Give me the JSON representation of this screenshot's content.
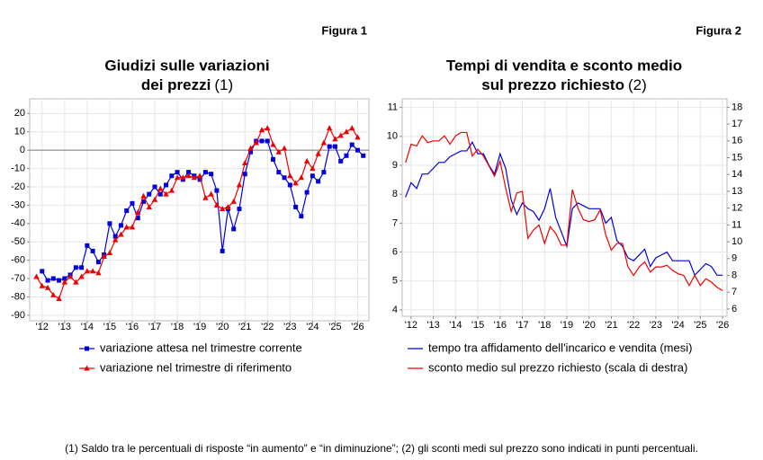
{
  "chart_data": [
    {
      "type": "line",
      "figure_label": "Figura 1",
      "title": [
        "Giudizi sulle variazioni",
        "dei prezzi"
      ],
      "title_note": "(1)",
      "x": [
        2011.75,
        2012,
        2012.25,
        2012.5,
        2012.75,
        2013,
        2013.25,
        2013.5,
        2013.75,
        2014,
        2014.25,
        2014.5,
        2014.75,
        2015,
        2015.25,
        2015.5,
        2015.75,
        2016,
        2016.25,
        2016.5,
        2016.75,
        2017,
        2017.25,
        2017.5,
        2017.75,
        2018,
        2018.25,
        2018.5,
        2018.75,
        2019,
        2019.25,
        2019.5,
        2019.75,
        2020,
        2020.25,
        2020.5,
        2020.75,
        2021,
        2021.25,
        2021.5,
        2021.75,
        2022,
        2022.25,
        2022.5,
        2022.75,
        2023,
        2023.25,
        2023.5,
        2023.75,
        2024,
        2024.25,
        2024.5,
        2024.75,
        2025,
        2025.25,
        2025.5,
        2025.75,
        2026,
        2026.25
      ],
      "series": [
        {
          "name": "variazione attesa nel trimestre corrente",
          "color": "#0000dd",
          "marker": "square",
          "values": [
            null,
            -66,
            -71,
            -70,
            -71,
            -70,
            -68,
            -64,
            -64,
            -52,
            -55,
            -61,
            -57,
            -40,
            -47,
            -41,
            -33,
            -29,
            -37,
            -28,
            -24,
            -20,
            -24,
            -19,
            -14,
            -12,
            -16,
            -12,
            -14,
            -16,
            -12,
            -13,
            -22,
            -55,
            -32,
            -43,
            -32,
            -13,
            -1,
            5,
            5,
            5,
            -5,
            -12,
            -15,
            -19,
            -31,
            -36,
            -23,
            -14,
            -17,
            -12,
            2,
            2,
            -6,
            -3,
            3,
            0,
            -3
          ]
        },
        {
          "name": "variazione nel trimestre di riferimento",
          "color": "#ee0000",
          "marker": "triangle",
          "values": [
            -69,
            -74,
            -75,
            -79,
            -81,
            -72,
            -69,
            -72,
            -69,
            -66,
            -66,
            -67,
            -58,
            -56,
            -49,
            -46,
            -42,
            -42,
            -34,
            -25,
            -31,
            -27,
            -21,
            -24,
            -22,
            -15,
            -15,
            -14,
            -15,
            -14,
            -26,
            -24,
            -30,
            -32,
            -31,
            -28,
            -19,
            -7,
            1,
            4,
            11,
            12,
            3,
            -1,
            1,
            -14,
            -18,
            -15,
            -6,
            -10,
            -2,
            4,
            12,
            6,
            8,
            10,
            12,
            7,
            null
          ]
        }
      ],
      "xlim": [
        2011.45,
        2026.5
      ],
      "xticks": [
        {
          "value": 2012,
          "label": "'12"
        },
        {
          "value": 2013,
          "label": "'13"
        },
        {
          "value": 2014,
          "label": "'14"
        },
        {
          "value": 2015,
          "label": "'15"
        },
        {
          "value": 2016,
          "label": "'16"
        },
        {
          "value": 2017,
          "label": "'17"
        },
        {
          "value": 2018,
          "label": "'18"
        },
        {
          "value": 2019,
          "label": "'19"
        },
        {
          "value": 2020,
          "label": "'20"
        },
        {
          "value": 2021,
          "label": "'21"
        },
        {
          "value": 2022,
          "label": "'22"
        },
        {
          "value": 2023,
          "label": "'23"
        },
        {
          "value": 2024,
          "label": "'24"
        },
        {
          "value": 2025,
          "label": "'25"
        },
        {
          "value": 2026,
          "label": "'26"
        }
      ],
      "ylim": [
        -93,
        28
      ],
      "yticks": [
        -90,
        -80,
        -70,
        -60,
        -50,
        -40,
        -30,
        -20,
        -10,
        0,
        10,
        20
      ],
      "grid": true,
      "zero_line": true
    },
    {
      "type": "line",
      "figure_label": "Figura 2",
      "title": [
        "Tempi di vendita e sconto medio",
        "sul prezzo richiesto"
      ],
      "title_note": "(2)",
      "x": [
        2011.75,
        2012,
        2012.25,
        2012.5,
        2012.75,
        2013,
        2013.25,
        2013.5,
        2013.75,
        2014,
        2014.25,
        2014.5,
        2014.75,
        2015,
        2015.25,
        2015.5,
        2015.75,
        2016,
        2016.25,
        2016.5,
        2016.75,
        2017,
        2017.25,
        2017.5,
        2017.75,
        2018,
        2018.25,
        2018.5,
        2018.75,
        2019,
        2019.25,
        2019.5,
        2019.75,
        2020,
        2020.25,
        2020.5,
        2020.75,
        2021,
        2021.25,
        2021.5,
        2021.75,
        2022,
        2022.25,
        2022.5,
        2022.75,
        2023,
        2023.25,
        2023.5,
        2023.75,
        2024,
        2024.25,
        2024.5,
        2024.75,
        2025,
        2025.25,
        2025.5,
        2025.75,
        2026
      ],
      "series": [
        {
          "name": "tempo tra affidamento dell'incarico e vendita (mesi)",
          "color": "#0000dd",
          "values": [
            7.9,
            8.4,
            8.2,
            8.7,
            8.7,
            8.9,
            9.1,
            9.1,
            9.3,
            9.4,
            9.5,
            9.5,
            9.8,
            9.4,
            9.4,
            9.0,
            8.7,
            9.4,
            8.9,
            7.8,
            7.3,
            7.7,
            7.5,
            7.4,
            7.1,
            7.5,
            8.2,
            7.2,
            6.7,
            6.2,
            7.5,
            7.7,
            7.6,
            7.5,
            7.5,
            7.5,
            7.0,
            7.2,
            6.4,
            6.2,
            5.8,
            5.7,
            5.9,
            6.1,
            5.5,
            5.8,
            5.9,
            6.0,
            5.7,
            5.7,
            5.7,
            5.7,
            5.2,
            5.4,
            5.6,
            5.5,
            5.2,
            5.2
          ]
        },
        {
          "name": "sconto medio sul prezzo richiesto (scala di destra)",
          "color": "#ee0000",
          "axis": "y2",
          "values": [
            14.7,
            15.8,
            15.7,
            16.3,
            15.9,
            16.0,
            16.0,
            16.3,
            15.8,
            16.3,
            16.5,
            16.5,
            15.1,
            15.5,
            15.1,
            14.5,
            13.9,
            14.8,
            13.2,
            11.8,
            12.9,
            13.0,
            10.2,
            10.7,
            11.0,
            9.9,
            10.9,
            10.5,
            9.8,
            9.8,
            13.1,
            12.0,
            11.3,
            11.2,
            11.3,
            11.9,
            10.4,
            9.5,
            9.9,
            9.9,
            8.5,
            8.0,
            8.5,
            8.8,
            8.2,
            8.5,
            8.5,
            8.6,
            8.3,
            8.1,
            8.0,
            7.4,
            8.0,
            7.4,
            7.8,
            7.6,
            7.3,
            7.1
          ]
        }
      ],
      "xlim": [
        2011.6,
        2026.2
      ],
      "xticks": [
        {
          "value": 2012,
          "label": "'12"
        },
        {
          "value": 2013,
          "label": "'13"
        },
        {
          "value": 2014,
          "label": "'14"
        },
        {
          "value": 2015,
          "label": "'15"
        },
        {
          "value": 2016,
          "label": "'16"
        },
        {
          "value": 2017,
          "label": "'17"
        },
        {
          "value": 2018,
          "label": "'18"
        },
        {
          "value": 2019,
          "label": "'19"
        },
        {
          "value": 2020,
          "label": "'20"
        },
        {
          "value": 2021,
          "label": "'21"
        },
        {
          "value": 2022,
          "label": "'22"
        },
        {
          "value": 2023,
          "label": "'23"
        },
        {
          "value": 2024,
          "label": "'24"
        },
        {
          "value": 2025,
          "label": "'25"
        },
        {
          "value": 2026,
          "label": "'26"
        }
      ],
      "ylim": [
        3.78,
        11.3
      ],
      "yticks": [
        4,
        5,
        6,
        7,
        8,
        9,
        10,
        11
      ],
      "y2lim": [
        5.57,
        18.5
      ],
      "y2ticks": [
        6,
        7,
        8,
        9,
        10,
        11,
        12,
        13,
        14,
        15,
        16,
        17,
        18
      ],
      "grid": true,
      "zero_line": false
    }
  ],
  "footnote": "(1) Saldo tra le percentuali di risposte “in aumento” e “in diminuzione”; (2) gli sconti medi sul prezzo sono indicati in punti percentuali."
}
